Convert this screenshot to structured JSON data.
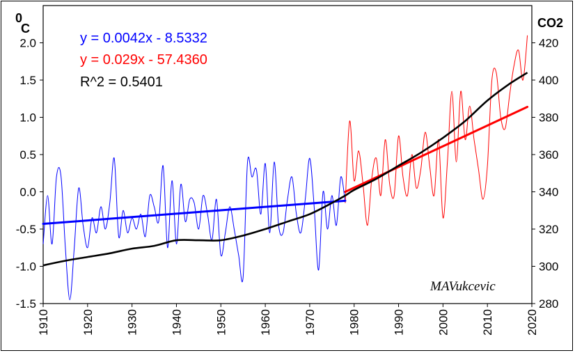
{
  "chart_data": {
    "type": "line",
    "x_range": [
      1910,
      2020
    ],
    "x_ticks": [
      1910,
      1920,
      1930,
      1940,
      1950,
      1960,
      1970,
      1980,
      1990,
      2000,
      2010,
      2020
    ],
    "y_left": {
      "unit_sup": "0",
      "unit": "C",
      "range": [
        -1.5,
        2.5
      ],
      "ticks": [
        "-1.5",
        "-1.0",
        "-0.5",
        "0.0",
        "0.5",
        "1.0",
        "1.5",
        "2.0"
      ]
    },
    "y_right": {
      "unit": "CO2",
      "range": [
        280,
        440
      ],
      "ticks": [
        "280",
        "300",
        "320",
        "340",
        "360",
        "380",
        "400",
        "420"
      ]
    },
    "equations": [
      {
        "text": "y = 0.0042x - 8.5332",
        "color": "#0000ff"
      },
      {
        "text": "y = 0.029x - 57.4360",
        "color": "#ff0000"
      },
      {
        "text": "R^2 = 0.5401",
        "color": "#000000"
      }
    ],
    "signature": "MAVukcevic",
    "series": [
      {
        "axis": "left",
        "color": "#0000ff",
        "x": [
          1910,
          1911,
          1912,
          1913,
          1914,
          1915,
          1916,
          1917,
          1918,
          1919,
          1920,
          1921,
          1922,
          1923,
          1924,
          1925,
          1926,
          1927,
          1928,
          1929,
          1930,
          1931,
          1932,
          1933,
          1934,
          1935,
          1936,
          1937,
          1938,
          1939,
          1940,
          1941,
          1942,
          1943,
          1944,
          1945,
          1946,
          1947,
          1948,
          1949,
          1950,
          1951,
          1952,
          1953,
          1954,
          1955,
          1956,
          1957,
          1958,
          1959,
          1960,
          1961,
          1962,
          1963,
          1964,
          1965,
          1966,
          1967,
          1968,
          1969,
          1970,
          1971,
          1972,
          1973,
          1974,
          1975,
          1976,
          1977,
          1978
        ],
        "y": [
          -0.7,
          -0.05,
          -0.7,
          0.2,
          0.22,
          -0.75,
          -1.45,
          -0.75,
          0.05,
          -0.45,
          -0.75,
          -0.35,
          -0.55,
          -0.2,
          -0.5,
          -0.15,
          0.45,
          -0.6,
          -0.25,
          -0.55,
          -0.35,
          -0.5,
          -0.3,
          -0.6,
          -0.05,
          -0.2,
          -0.4,
          0.35,
          -0.75,
          0.15,
          -0.7,
          0.1,
          -0.4,
          -0.1,
          -0.15,
          -0.5,
          -0.05,
          -0.3,
          -0.65,
          -0.1,
          -0.85,
          -0.55,
          -0.2,
          -0.5,
          -0.85,
          -1.15,
          0.4,
          0.2,
          0.3,
          -0.3,
          0.38,
          -0.55,
          0.4,
          -0.45,
          -0.55,
          -0.1,
          0.2,
          -0.3,
          -0.55,
          -0.1,
          0.45,
          -0.2,
          -1.05,
          0.0,
          -0.5,
          -0.05,
          -0.45,
          0.2,
          -0.15
        ]
      },
      {
        "axis": "left",
        "color": "#ff0000",
        "x": [
          1978,
          1979,
          1980,
          1981,
          1982,
          1983,
          1984,
          1985,
          1986,
          1987,
          1988,
          1989,
          1990,
          1991,
          1992,
          1993,
          1994,
          1995,
          1996,
          1997,
          1998,
          1999,
          2000,
          2001,
          2002,
          2003,
          2004,
          2005,
          2006,
          2007,
          2008,
          2009,
          2010,
          2011,
          2012,
          2013,
          2014,
          2015,
          2016,
          2017,
          2018,
          2019
        ],
        "y": [
          -0.15,
          0.95,
          0.15,
          0.55,
          0.1,
          -0.45,
          0.2,
          0.45,
          -0.05,
          0.7,
          0.1,
          -0.05,
          0.75,
          0.2,
          -0.05,
          0.5,
          0.05,
          0.3,
          0.8,
          0.35,
          -0.05,
          0.7,
          -0.35,
          0.4,
          1.35,
          0.4,
          1.35,
          0.7,
          1.15,
          0.7,
          0.3,
          -0.1,
          0.35,
          1.5,
          1.6,
          1.0,
          0.85,
          1.3,
          1.7,
          1.9,
          1.5,
          2.1
        ]
      },
      {
        "axis": "right",
        "color": "#000000",
        "x": [
          1910,
          1915,
          1920,
          1925,
          1930,
          1935,
          1940,
          1945,
          1950,
          1955,
          1960,
          1965,
          1970,
          1975,
          1978,
          1980,
          1985,
          1990,
          1995,
          2000,
          2005,
          2010,
          2015,
          2019
        ],
        "y": [
          300.5,
          303,
          305,
          307,
          309.5,
          311,
          314,
          314,
          314,
          316.5,
          320,
          324,
          328,
          334,
          338,
          341,
          347,
          354,
          361,
          369,
          378,
          389,
          398,
          404
        ]
      }
    ],
    "trendlines": [
      {
        "color": "#0000ff",
        "x": [
          1910,
          1978
        ],
        "y": [
          -0.43,
          -0.12
        ]
      },
      {
        "color": "#ff0000",
        "x": [
          1978,
          2019
        ],
        "y": [
          0.0,
          1.14
        ]
      }
    ]
  }
}
